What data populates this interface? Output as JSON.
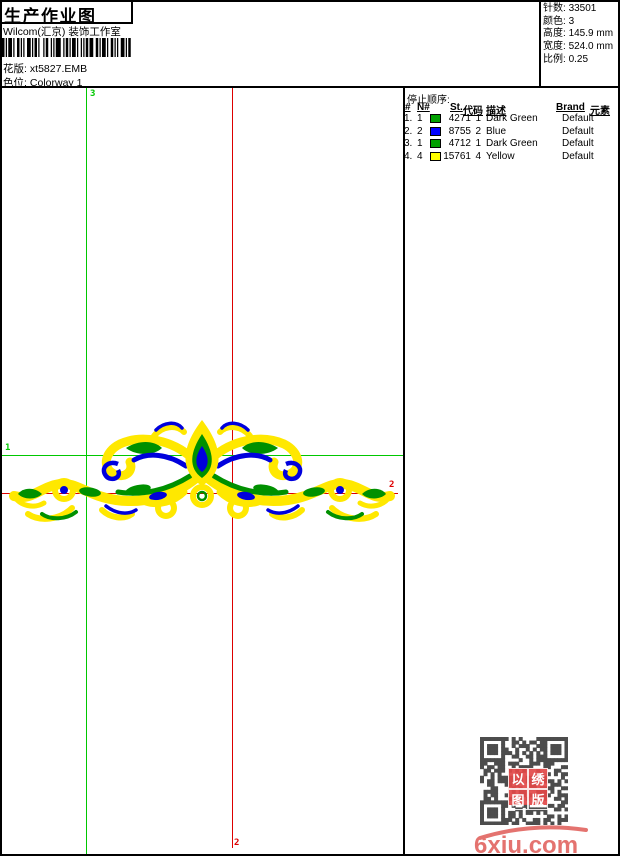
{
  "header": {
    "title": "生产作业图",
    "studio": "Wilcom(汇京) 装饰工作室",
    "pattern_label": "花版:",
    "pattern_value": "xt5827.EMB",
    "colorway_label": "色位:",
    "colorway_value": "Colorway 1"
  },
  "info": {
    "rows": [
      {
        "label": "针数:",
        "value": "33501"
      },
      {
        "label": "颜色:",
        "value": "3"
      },
      {
        "label": "高度:",
        "value": "145.9 mm"
      },
      {
        "label": "宽度:",
        "value": "524.0 mm"
      },
      {
        "label": "比例:",
        "value": "0.25"
      }
    ]
  },
  "stop_sequence": {
    "title": "停止顺序:",
    "columns": [
      "#",
      "N#",
      "St.",
      "代码",
      "描述",
      "Brand",
      "元素"
    ],
    "rows": [
      {
        "index": "1.",
        "needle": "1",
        "color": "#00a000",
        "stitches": "4271",
        "code": "1",
        "description": "Dark Green",
        "brand": "Default",
        "element": ""
      },
      {
        "index": "2.",
        "needle": "2",
        "color": "#0000ff",
        "stitches": "8755",
        "code": "2",
        "description": "Blue",
        "brand": "Default",
        "element": ""
      },
      {
        "index": "3.",
        "needle": "1",
        "color": "#00a000",
        "stitches": "4712",
        "code": "1",
        "description": "Dark Green",
        "brand": "Default",
        "element": ""
      },
      {
        "index": "4.",
        "needle": "4",
        "color": "#ffff00",
        "stitches": "15761",
        "code": "4",
        "description": "Yellow",
        "brand": "Default",
        "element": ""
      }
    ]
  },
  "canvas": {
    "marker_labels": {
      "green_horizontal": "1",
      "red_horizontal": "2",
      "red_vertical": "2",
      "green_vertical": "3"
    },
    "colors": {
      "guide_green": "#00c800",
      "guide_red": "#dd0000",
      "design_yellow": "#ffe800",
      "design_green": "#009000",
      "design_blue": "#0000dd"
    }
  },
  "watermark": {
    "logo_text": "6xiu.com",
    "stamp_chars": [
      "以",
      "绣",
      "图",
      "版"
    ]
  }
}
